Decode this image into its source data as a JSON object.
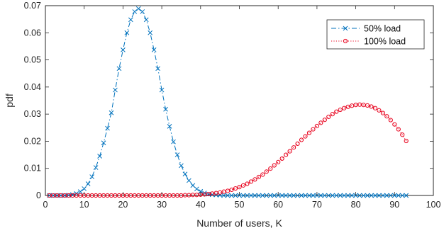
{
  "chart_data": {
    "type": "line",
    "title": "",
    "xlabel": "Number of users, K",
    "ylabel": "pdf",
    "xlim": [
      0,
      100
    ],
    "ylim": [
      0,
      0.07
    ],
    "xticks": [
      0,
      10,
      20,
      30,
      40,
      50,
      60,
      70,
      80,
      90,
      100
    ],
    "yticks": [
      "0",
      "0.01",
      "0.02",
      "0.03",
      "0.04",
      "0.05",
      "0.06",
      "0.07"
    ],
    "grid": false,
    "legend_position": "top-right",
    "series": [
      {
        "name": "50% load",
        "color": "#0072bd",
        "line_style": "dash-dot",
        "marker": "x",
        "x": [
          1,
          2,
          3,
          4,
          5,
          6,
          7,
          8,
          9,
          10,
          11,
          12,
          13,
          14,
          15,
          16,
          17,
          18,
          19,
          20,
          21,
          22,
          23,
          24,
          25,
          26,
          27,
          28,
          29,
          30,
          31,
          32,
          33,
          34,
          35,
          36,
          37,
          38,
          39,
          40,
          41,
          42,
          43,
          44,
          45,
          46,
          47,
          48,
          49,
          50,
          51,
          52,
          53,
          54,
          55,
          56,
          57,
          58,
          59,
          60,
          61,
          62,
          63,
          64,
          65,
          66,
          67,
          68,
          69,
          70,
          71,
          72,
          73,
          74,
          75,
          76,
          77,
          78,
          79,
          80,
          81,
          82,
          83,
          84,
          85,
          86,
          87,
          88,
          89,
          90,
          91,
          92,
          93
        ],
        "y": [
          0,
          0,
          0,
          0,
          0,
          0.0001,
          0.0003,
          0.0007,
          0.0014,
          0.0025,
          0.0043,
          0.0069,
          0.0103,
          0.0145,
          0.0194,
          0.0248,
          0.0305,
          0.0389,
          0.0468,
          0.0537,
          0.06,
          0.0648,
          0.0678,
          0.0689,
          0.0678,
          0.0648,
          0.06,
          0.0537,
          0.0468,
          0.0389,
          0.0318,
          0.0255,
          0.0198,
          0.015,
          0.011,
          0.0079,
          0.0055,
          0.0037,
          0.0024,
          0.0015,
          0.0009,
          0.0005,
          0.0003,
          0.0002,
          0.0001,
          0,
          0,
          0,
          0,
          0,
          0,
          0,
          0,
          0,
          0,
          0,
          0,
          0,
          0,
          0,
          0,
          0,
          0,
          0,
          0,
          0,
          0,
          0,
          0,
          0,
          0,
          0,
          0,
          0,
          0,
          0,
          0,
          0,
          0,
          0,
          0,
          0,
          0,
          0,
          0,
          0,
          0,
          0,
          0,
          0,
          0,
          0,
          0
        ]
      },
      {
        "name": "100% load",
        "color": "#e8001c",
        "line_style": "dotted",
        "marker": "o",
        "x": [
          1,
          2,
          3,
          4,
          5,
          6,
          7,
          8,
          9,
          10,
          11,
          12,
          13,
          14,
          15,
          16,
          17,
          18,
          19,
          20,
          21,
          22,
          23,
          24,
          25,
          26,
          27,
          28,
          29,
          30,
          31,
          32,
          33,
          34,
          35,
          36,
          37,
          38,
          39,
          40,
          41,
          42,
          43,
          44,
          45,
          46,
          47,
          48,
          49,
          50,
          51,
          52,
          53,
          54,
          55,
          56,
          57,
          58,
          59,
          60,
          61,
          62,
          63,
          64,
          65,
          66,
          67,
          68,
          69,
          70,
          71,
          72,
          73,
          74,
          75,
          76,
          77,
          78,
          79,
          80,
          81,
          82,
          83,
          84,
          85,
          86,
          87,
          88,
          89,
          90,
          91,
          92,
          93
        ],
        "y": [
          0,
          0,
          0,
          0,
          0,
          0,
          0,
          0,
          0,
          0,
          0,
          0,
          0,
          0,
          0,
          0,
          0,
          0,
          0,
          0,
          0,
          0,
          0,
          0,
          0,
          0,
          0,
          0,
          0,
          0,
          0,
          0,
          0,
          0,
          0,
          0.0001,
          0.0001,
          0.0002,
          0.0002,
          0.0003,
          0.0004,
          0.0005,
          0.0007,
          0.0009,
          0.0011,
          0.0014,
          0.0017,
          0.0021,
          0.0026,
          0.0031,
          0.0037,
          0.0043,
          0.0051,
          0.0059,
          0.0068,
          0.0077,
          0.0088,
          0.0099,
          0.0111,
          0.0123,
          0.0136,
          0.015,
          0.0163,
          0.0177,
          0.0191,
          0.0205,
          0.0218,
          0.0231,
          0.0244,
          0.0256,
          0.0268,
          0.0279,
          0.029,
          0.03,
          0.0309,
          0.0316,
          0.0322,
          0.0327,
          0.0331,
          0.0334,
          0.0335,
          0.0334,
          0.0332,
          0.0328,
          0.0322,
          0.0314,
          0.0304,
          0.0292,
          0.0278,
          0.0262,
          0.0244,
          0.0224,
          0.0201
        ]
      }
    ]
  }
}
